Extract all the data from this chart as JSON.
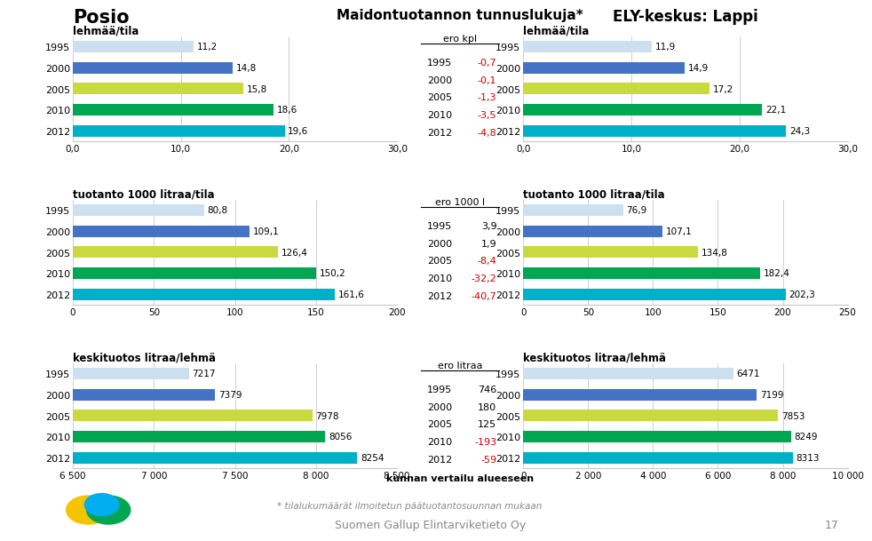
{
  "title_left": "Posio",
  "title_center": "Maidontuotannon tunnuslukuja*",
  "title_right": "ELY-keskus: Lappi",
  "years": [
    "1995",
    "2000",
    "2005",
    "2010",
    "2012"
  ],
  "bar_colors": [
    "#cce0f0",
    "#4472c4",
    "#c9d940",
    "#00a651",
    "#00b0c8"
  ],
  "posio_lehma": [
    11.2,
    14.8,
    15.8,
    18.6,
    19.6
  ],
  "posio_tuotanto": [
    80.8,
    109.1,
    126.4,
    150.2,
    161.6
  ],
  "posio_keskituotos": [
    7217,
    7379,
    7978,
    8056,
    8254
  ],
  "ely_lehma": [
    11.9,
    14.9,
    17.2,
    22.1,
    24.3
  ],
  "ely_tuotanto": [
    76.9,
    107.1,
    134.8,
    182.4,
    202.3
  ],
  "ely_keskituotos": [
    6471,
    7199,
    7853,
    8249,
    8313
  ],
  "ero_kpl": [
    -0.7,
    -0.1,
    -1.3,
    -3.5,
    -4.8
  ],
  "ero_1000l": [
    3.9,
    1.9,
    -8.4,
    -32.2,
    -40.7
  ],
  "ero_litraa": [
    746,
    180,
    125,
    -193,
    -59
  ],
  "lehma_xlim": [
    0,
    30
  ],
  "lehma_xticks": [
    0.0,
    10.0,
    20.0,
    30.0
  ],
  "lehma_xticklabels": [
    "0,0",
    "10,0",
    "20,0",
    "30,0"
  ],
  "tuotanto_xlim": [
    0,
    200
  ],
  "tuotanto_xticks": [
    0,
    50,
    100,
    150,
    200
  ],
  "tuotanto_xticklabels": [
    "0",
    "50",
    "100",
    "150",
    "200"
  ],
  "ely_tuotanto_xlim": [
    0,
    250
  ],
  "ely_tuotanto_xticks": [
    0,
    50,
    100,
    150,
    200,
    250
  ],
  "ely_tuotanto_xticklabels": [
    "0",
    "50",
    "100",
    "150",
    "200",
    "250"
  ],
  "posio_keskituotos_xlim": [
    6500,
    8500
  ],
  "posio_keskituotos_xticks": [
    6500,
    7000,
    7500,
    8000,
    8500
  ],
  "posio_keskituotos_xticklabels": [
    "6 500",
    "7 000",
    "7 500",
    "8 000",
    "8 500"
  ],
  "ely_keskituotos_xlim": [
    0,
    10000
  ],
  "ely_keskituotos_xticks": [
    0,
    2000,
    4000,
    6000,
    8000,
    10000
  ],
  "ely_keskituotos_xticklabels": [
    "0",
    "2 000",
    "4 000",
    "6 000",
    "8 000",
    "10 000"
  ],
  "subtitle_lehma": "lehmää/tila",
  "subtitle_tuotanto": "tuotanto 1000 litraa/tila",
  "subtitle_keskituotos": "keskituotos litraa/lehmä",
  "ero_kpl_label": "ero kpl",
  "ero_1000l_label": "ero 1000 l",
  "ero_litraa_label": "ero litraa",
  "kunnan_label": "kunnan vertailu alueeseen",
  "footnote": "* tilalukumäärät ilmoitetun päätuotantosuunnan mukaan",
  "bottom_text": "Suomen Gallup Elintarviketieto Oy",
  "page_number": "17",
  "bg_color": "#ffffff",
  "panel_bg": "#ebebeb",
  "grid_color": "#c8c8c8",
  "text_black": "#000000",
  "text_red": "#cc0000",
  "text_gray": "#888888"
}
